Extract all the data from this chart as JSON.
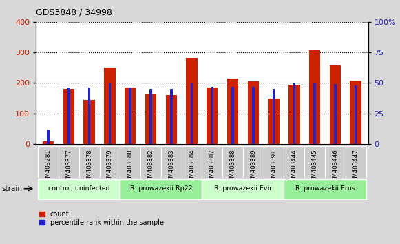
{
  "title": "GDS3848 / 34998",
  "samples": [
    "GSM403281",
    "GSM403377",
    "GSM403378",
    "GSM403379",
    "GSM403380",
    "GSM403382",
    "GSM403383",
    "GSM403384",
    "GSM403387",
    "GSM403388",
    "GSM403389",
    "GSM403391",
    "GSM403444",
    "GSM403445",
    "GSM403446",
    "GSM403447"
  ],
  "count_values": [
    8,
    180,
    145,
    250,
    185,
    165,
    160,
    282,
    185,
    215,
    205,
    148,
    195,
    308,
    257,
    208
  ],
  "percentile_values": [
    12,
    46,
    46,
    50,
    46,
    45,
    45,
    50,
    47,
    47,
    47,
    45,
    50,
    50,
    49,
    48
  ],
  "groups": [
    {
      "label": "control, uninfected",
      "start": 0,
      "end": 3
    },
    {
      "label": "R. prowazekii Rp22",
      "start": 4,
      "end": 7
    },
    {
      "label": "R. prowazekii Evir",
      "start": 8,
      "end": 11
    },
    {
      "label": "R. prowazekii Erus",
      "start": 12,
      "end": 15
    }
  ],
  "group_colors": [
    "#ccffcc",
    "#99ee99",
    "#ccffcc",
    "#99ee99"
  ],
  "bar_color_red": "#cc2200",
  "bar_color_blue": "#2222cc",
  "left_ylim": [
    0,
    400
  ],
  "right_ylim": [
    0,
    100
  ],
  "left_yticks": [
    0,
    100,
    200,
    300,
    400
  ],
  "right_yticks": [
    0,
    25,
    50,
    75,
    100
  ],
  "right_yticklabels": [
    "0",
    "25",
    "50",
    "75",
    "100%"
  ],
  "bg_color": "#d8d8d8",
  "plot_bg_color": "#ffffff",
  "grid_color": "#333333",
  "legend_count": "count",
  "legend_pct": "percentile rank within the sample"
}
